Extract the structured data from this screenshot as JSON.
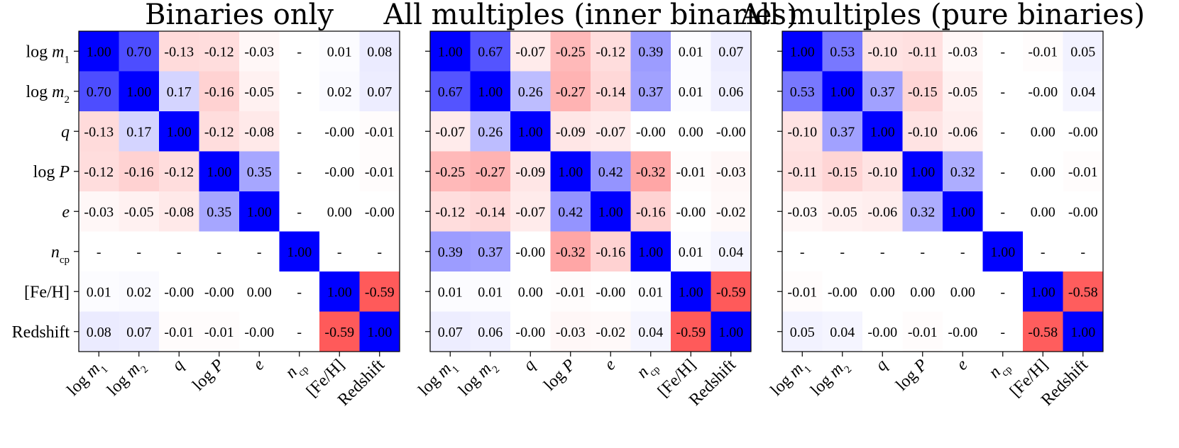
{
  "chart_data": [
    {
      "type": "heatmap",
      "title": "Binaries only",
      "labels": [
        "log m1",
        "log m2",
        "q",
        "log P",
        "e",
        "n_cp",
        "[Fe/H]",
        "Redshift"
      ],
      "values": [
        [
          1.0,
          0.7,
          -0.13,
          -0.12,
          -0.03,
          null,
          0.01,
          0.08
        ],
        [
          0.7,
          1.0,
          0.17,
          -0.16,
          -0.05,
          null,
          0.02,
          0.07
        ],
        [
          -0.13,
          0.17,
          1.0,
          -0.12,
          -0.08,
          null,
          -0.0,
          -0.01
        ],
        [
          -0.12,
          -0.16,
          -0.12,
          1.0,
          0.35,
          null,
          -0.0,
          -0.01
        ],
        [
          -0.03,
          -0.05,
          -0.08,
          0.35,
          1.0,
          null,
          0.0,
          -0.0
        ],
        [
          null,
          null,
          null,
          null,
          null,
          1.0,
          null,
          null
        ],
        [
          0.01,
          0.02,
          -0.0,
          -0.0,
          0.0,
          null,
          1.0,
          -0.59
        ],
        [
          0.08,
          0.07,
          -0.01,
          -0.01,
          -0.0,
          null,
          -0.59,
          1.0
        ]
      ],
      "missing_label": "-"
    },
    {
      "type": "heatmap",
      "title": "All multiples (inner binaries)",
      "labels": [
        "log m1",
        "log m2",
        "q",
        "log P",
        "e",
        "n_cp",
        "[Fe/H]",
        "Redshift"
      ],
      "values": [
        [
          1.0,
          0.67,
          -0.07,
          -0.25,
          -0.12,
          0.39,
          0.01,
          0.07
        ],
        [
          0.67,
          1.0,
          0.26,
          -0.27,
          -0.14,
          0.37,
          0.01,
          0.06
        ],
        [
          -0.07,
          0.26,
          1.0,
          -0.09,
          -0.07,
          -0.0,
          0.0,
          -0.0
        ],
        [
          -0.25,
          -0.27,
          -0.09,
          1.0,
          0.42,
          -0.32,
          -0.01,
          -0.03
        ],
        [
          -0.12,
          -0.14,
          -0.07,
          0.42,
          1.0,
          -0.16,
          -0.0,
          -0.02
        ],
        [
          0.39,
          0.37,
          -0.0,
          -0.32,
          -0.16,
          1.0,
          0.01,
          0.04
        ],
        [
          0.01,
          0.01,
          0.0,
          -0.01,
          -0.0,
          0.01,
          1.0,
          -0.59
        ],
        [
          0.07,
          0.06,
          -0.0,
          -0.03,
          -0.02,
          0.04,
          -0.59,
          1.0
        ]
      ],
      "missing_label": "-"
    },
    {
      "type": "heatmap",
      "title": "All multiples (pure binaries)",
      "labels": [
        "log m1",
        "log m2",
        "q",
        "log P",
        "e",
        "n_cp",
        "[Fe/H]",
        "Redshift"
      ],
      "values": [
        [
          1.0,
          0.53,
          -0.1,
          -0.11,
          -0.03,
          null,
          -0.01,
          0.05
        ],
        [
          0.53,
          1.0,
          0.37,
          -0.15,
          -0.05,
          null,
          -0.0,
          0.04
        ],
        [
          -0.1,
          0.37,
          1.0,
          -0.1,
          -0.06,
          null,
          0.0,
          -0.0
        ],
        [
          -0.11,
          -0.15,
          -0.1,
          1.0,
          0.32,
          null,
          0.0,
          -0.01
        ],
        [
          -0.03,
          -0.05,
          -0.06,
          0.32,
          1.0,
          null,
          0.0,
          -0.0
        ],
        [
          null,
          null,
          null,
          null,
          null,
          1.0,
          null,
          null
        ],
        [
          -0.01,
          -0.0,
          0.0,
          0.0,
          0.0,
          null,
          1.0,
          -0.58
        ],
        [
          0.05,
          0.04,
          -0.0,
          -0.01,
          -0.0,
          null,
          -0.58,
          1.0
        ]
      ],
      "missing_label": "-"
    }
  ],
  "colors": {
    "positive": "#0000ff",
    "negative": "#ff5a5a",
    "missing": "#ffffff"
  },
  "color_scale": [
    -1.0,
    1.0
  ]
}
